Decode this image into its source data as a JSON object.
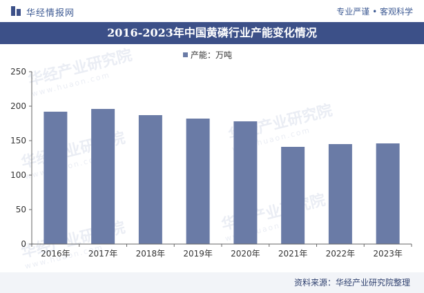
{
  "header": {
    "brand": "华经情报网",
    "slogan": "专业严谨 • 客观科学"
  },
  "watermark": {
    "text": "华经产业研究院",
    "url": "www.huaon.com"
  },
  "footer": {
    "source": "资料来源：华经产业研究院整理"
  },
  "colors": {
    "bar": "#6a7ba6",
    "title_bg": "#3c5088",
    "axis": "#666666"
  },
  "chart_data": {
    "type": "bar",
    "title": "2016-2023年中国黄磷行业产能变化情况",
    "categories": [
      "2016年",
      "2017年",
      "2018年",
      "2019年",
      "2020年",
      "2021年",
      "2022年",
      "2023年"
    ],
    "series": [
      {
        "name": "产能：万吨",
        "values": [
          192,
          196,
          187,
          182,
          178,
          141,
          145,
          146
        ]
      }
    ],
    "yticks": [
      0,
      50,
      100,
      150,
      200,
      250
    ],
    "ylim": [
      0,
      250
    ],
    "xlabel": "",
    "ylabel": "",
    "legend_position": "top-center",
    "grid": false
  }
}
